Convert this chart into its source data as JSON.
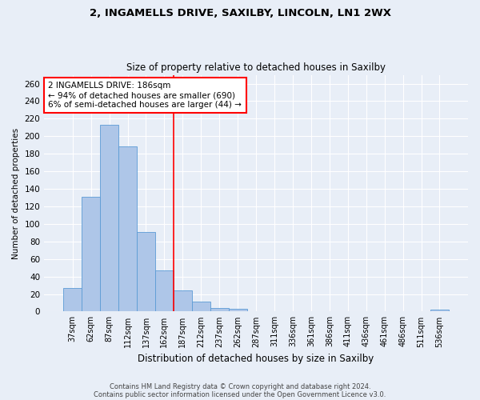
{
  "title1": "2, INGAMELLS DRIVE, SAXILBY, LINCOLN, LN1 2WX",
  "title2": "Size of property relative to detached houses in Saxilby",
  "xlabel": "Distribution of detached houses by size in Saxilby",
  "ylabel": "Number of detached properties",
  "bar_labels": [
    "37sqm",
    "62sqm",
    "87sqm",
    "112sqm",
    "137sqm",
    "162sqm",
    "187sqm",
    "212sqm",
    "237sqm",
    "262sqm",
    "287sqm",
    "311sqm",
    "336sqm",
    "361sqm",
    "386sqm",
    "411sqm",
    "436sqm",
    "461sqm",
    "486sqm",
    "511sqm",
    "536sqm"
  ],
  "bar_values": [
    27,
    131,
    213,
    188,
    91,
    47,
    24,
    11,
    4,
    3,
    0,
    0,
    0,
    0,
    0,
    0,
    0,
    0,
    0,
    0,
    2
  ],
  "bar_color": "#aec6e8",
  "bar_edge_color": "#5b9bd5",
  "annotation_line1": "2 INGAMELLS DRIVE: 186sqm",
  "annotation_line2": "← 94% of detached houses are smaller (690)",
  "annotation_line3": "6% of semi-detached houses are larger (44) →",
  "red_line_bar_index": 6,
  "ylim": [
    0,
    270
  ],
  "yticks": [
    0,
    20,
    40,
    60,
    80,
    100,
    120,
    140,
    160,
    180,
    200,
    220,
    240,
    260
  ],
  "background_color": "#e8eef7",
  "grid_color": "#ffffff",
  "footer1": "Contains HM Land Registry data © Crown copyright and database right 2024.",
  "footer2": "Contains public sector information licensed under the Open Government Licence v3.0."
}
